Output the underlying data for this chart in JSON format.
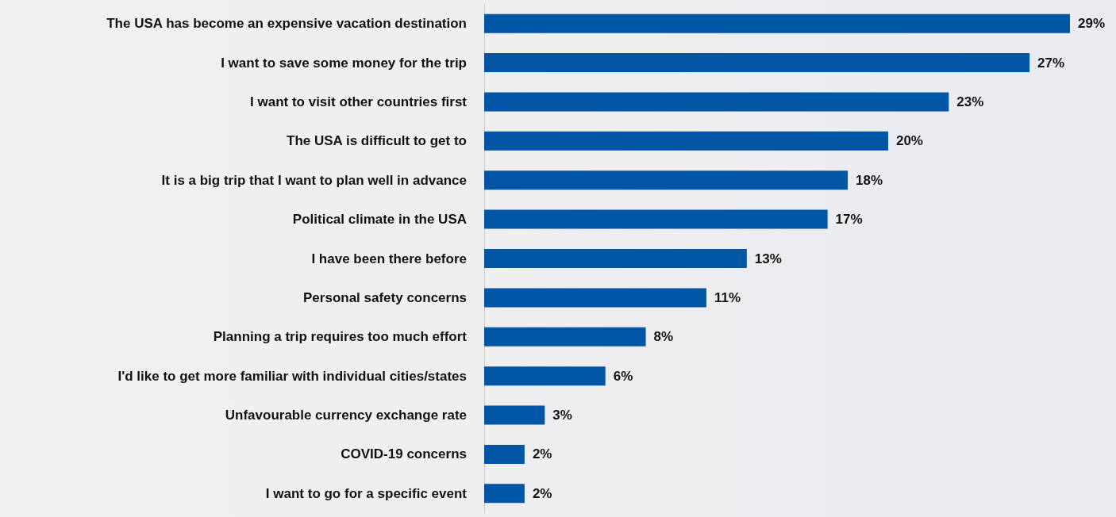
{
  "chart_data": {
    "type": "bar",
    "orientation": "horizontal",
    "categories": [
      "The USA has become an expensive vacation destination",
      "I want to save some money for the trip",
      "I want to visit other countries first",
      "The USA is difficult to get to",
      "It is a big trip that I want to plan well in advance",
      "Political climate in the USA",
      "I have been there before",
      "Personal safety concerns",
      "Planning a trip requires too much effort",
      "I'd like to get more familiar with individual cities/states",
      "Unfavourable currency exchange rate",
      "COVID-19 concerns",
      "I want to go for a specific event"
    ],
    "values": [
      29,
      27,
      23,
      20,
      18,
      17,
      13,
      11,
      8,
      6,
      3,
      2,
      2
    ],
    "value_labels": [
      "29%",
      "27%",
      "23%",
      "20%",
      "18%",
      "17%",
      "13%",
      "11%",
      "8%",
      "6%",
      "3%",
      "2%",
      "2%"
    ],
    "color": "#0055a5",
    "tick_labels": "y"
  }
}
